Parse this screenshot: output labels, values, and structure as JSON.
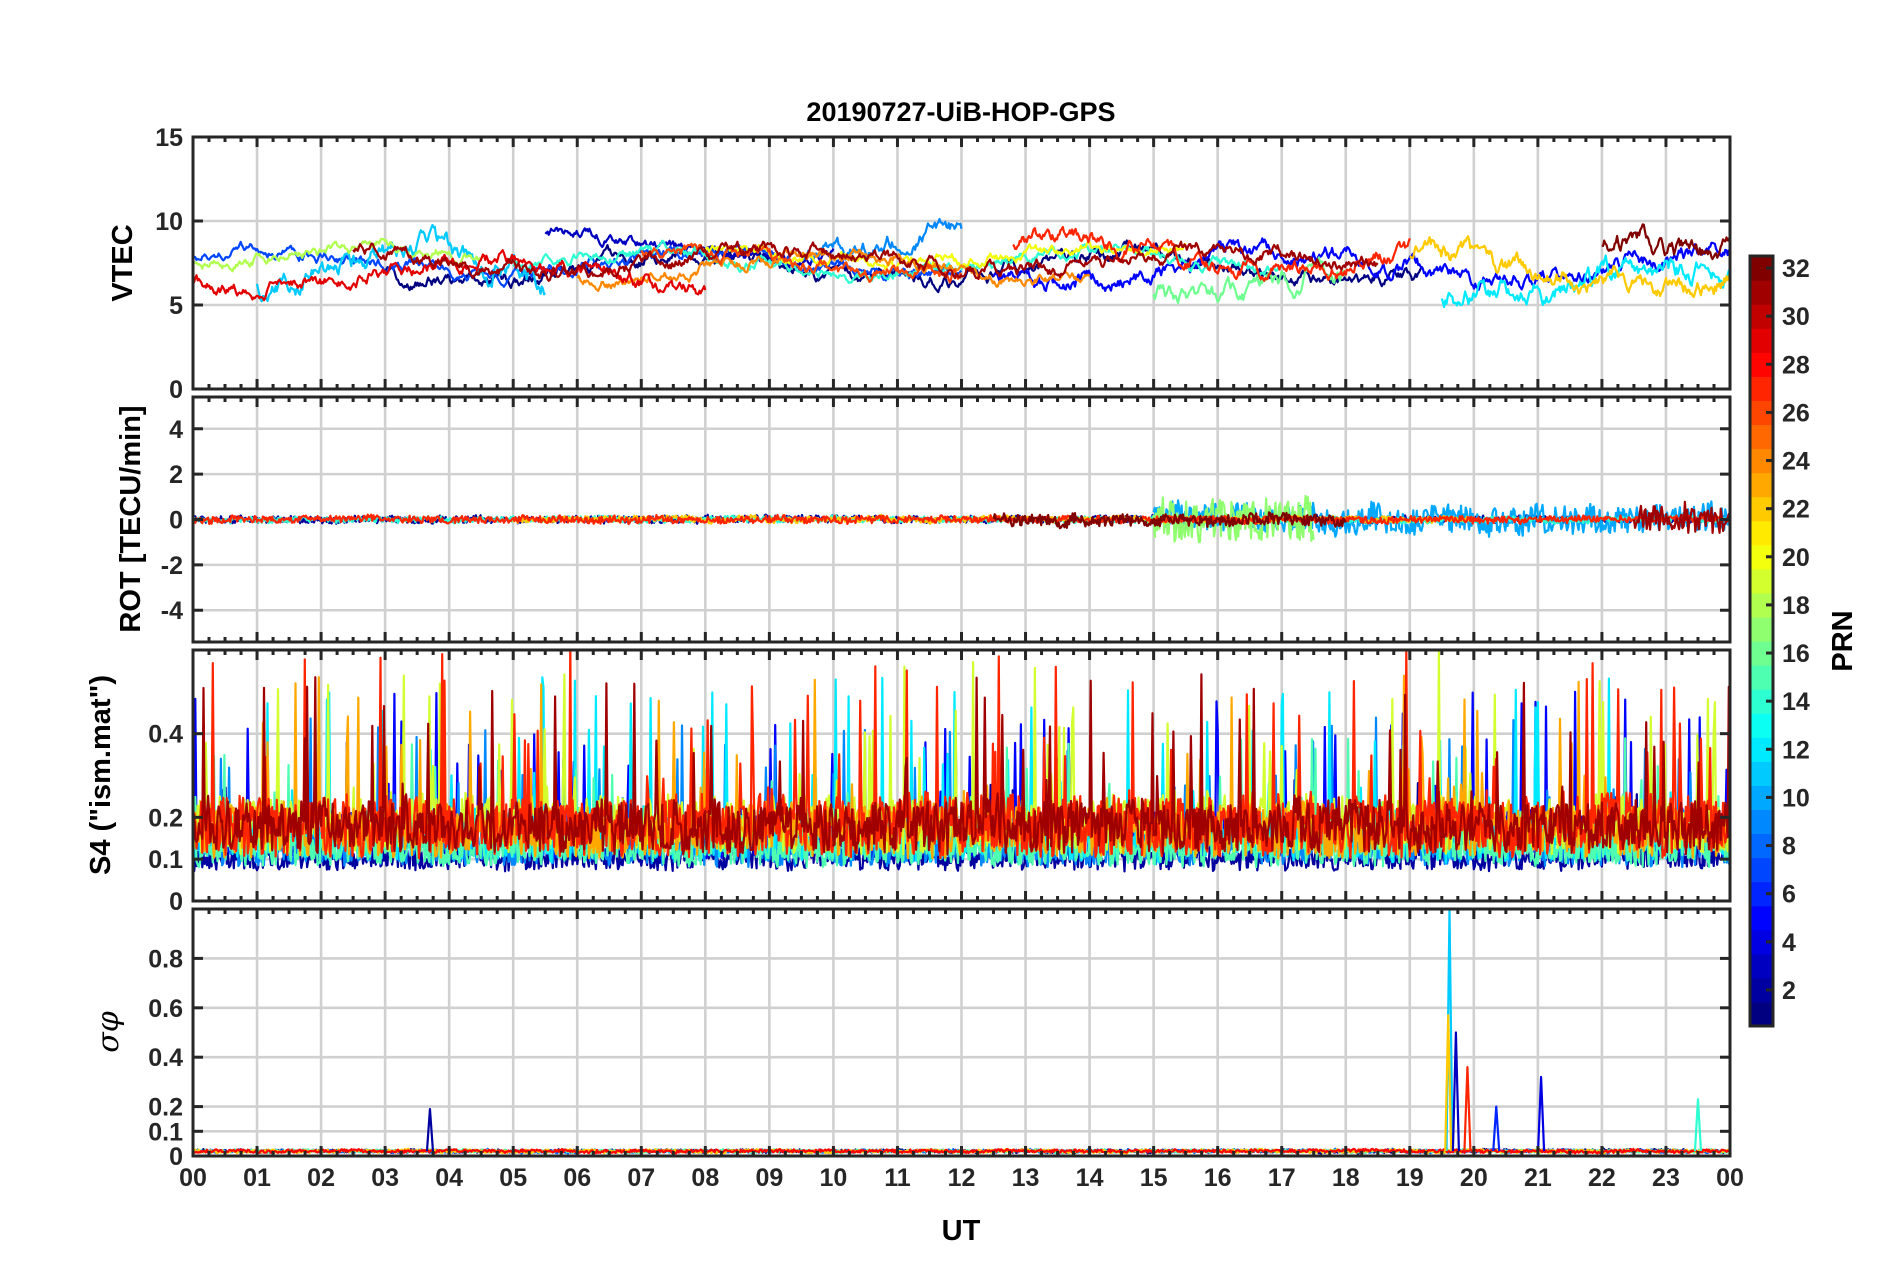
{
  "chart_data": {
    "type": "line",
    "title": "20190727-UiB-HOP-GPS",
    "xlabel": "UT",
    "x_tick_labels": [
      "00",
      "01",
      "02",
      "03",
      "04",
      "05",
      "06",
      "07",
      "08",
      "09",
      "10",
      "11",
      "12",
      "13",
      "14",
      "15",
      "16",
      "17",
      "18",
      "19",
      "20",
      "21",
      "22",
      "23",
      "00"
    ],
    "xlim": [
      0,
      24
    ],
    "colorbar": {
      "label": "PRN",
      "colormap": "jet",
      "range": [
        1,
        32
      ],
      "tick_labels": [
        "2",
        "4",
        "6",
        "8",
        "10",
        "12",
        "14",
        "16",
        "18",
        "20",
        "22",
        "24",
        "26",
        "28",
        "30",
        "32"
      ]
    },
    "panels": [
      {
        "id": "vtec",
        "ylabel": "VTEC",
        "ylim": [
          0,
          15
        ],
        "y_ticks": [
          0,
          5,
          10,
          15
        ],
        "y_tick_labels": [
          "0",
          "5",
          "10",
          "15"
        ],
        "series": [
          {
            "prn": 1,
            "start": 3.0,
            "end": 19.2,
            "base": 7.2,
            "amp": 0.8,
            "noise": 0.25
          },
          {
            "prn": 3,
            "start": 5.5,
            "end": 10.0,
            "base": 8.6,
            "amp": 0.9,
            "noise": 0.2
          },
          {
            "prn": 5,
            "start": 12.5,
            "end": 24.0,
            "base": 7.3,
            "amp": 0.9,
            "noise": 0.3
          },
          {
            "prn": 7,
            "start": 0.0,
            "end": 12.0,
            "base": 7.6,
            "amp": 0.6,
            "noise": 0.2
          },
          {
            "prn": 9,
            "start": 9.5,
            "end": 12.0,
            "base": 8.7,
            "amp": 1.0,
            "noise": 0.3
          },
          {
            "prn": 11,
            "start": 1.0,
            "end": 5.5,
            "base": 6.8,
            "amp": 1.3,
            "noise": 0.4
          },
          {
            "prn": 12,
            "start": 19.5,
            "end": 24.0,
            "base": 6.2,
            "amp": 0.8,
            "noise": 0.4
          },
          {
            "prn": 14,
            "start": 5.0,
            "end": 17.0,
            "base": 7.5,
            "amp": 0.7,
            "noise": 0.2
          },
          {
            "prn": 16,
            "start": 15.0,
            "end": 18.0,
            "base": 6.3,
            "amp": 0.9,
            "noise": 0.35
          },
          {
            "prn": 18,
            "start": 0.0,
            "end": 4.5,
            "base": 7.8,
            "amp": 0.7,
            "noise": 0.2
          },
          {
            "prn": 20,
            "start": 8.0,
            "end": 15.5,
            "base": 7.9,
            "amp": 0.5,
            "noise": 0.2
          },
          {
            "prn": 22,
            "start": 19.0,
            "end": 24.0,
            "base": 7.0,
            "amp": 1.0,
            "noise": 0.35
          },
          {
            "prn": 24,
            "start": 6.0,
            "end": 14.0,
            "base": 7.3,
            "amp": 0.8,
            "noise": 0.2
          },
          {
            "prn": 26,
            "start": 7.0,
            "end": 12.0,
            "base": 7.5,
            "amp": 0.8,
            "noise": 0.25
          },
          {
            "prn": 27,
            "start": 12.8,
            "end": 19.0,
            "base": 8.0,
            "amp": 0.9,
            "noise": 0.3
          },
          {
            "prn": 29,
            "start": 0.0,
            "end": 8.0,
            "base": 6.8,
            "amp": 0.9,
            "noise": 0.25
          },
          {
            "prn": 31,
            "start": 2.5,
            "end": 18.5,
            "base": 7.6,
            "amp": 0.6,
            "noise": 0.25
          },
          {
            "prn": 32,
            "start": 22.0,
            "end": 24.0,
            "base": 8.2,
            "amp": 0.5,
            "noise": 0.4
          }
        ]
      },
      {
        "id": "rot",
        "ylabel": "ROT [TECU/min]",
        "ylim": [
          -5.4,
          5.4
        ],
        "y_ticks": [
          -4,
          -2,
          0,
          2,
          4
        ],
        "y_tick_labels": [
          "-4",
          "-2",
          "0",
          "2",
          "4"
        ],
        "series": [
          {
            "prn": 2,
            "start": 0.0,
            "end": 24.0,
            "base": 0,
            "amp": 0.15,
            "noise": 0.12
          },
          {
            "prn": 10,
            "start": 15.0,
            "end": 24.0,
            "base": 0,
            "amp": 0.6,
            "noise": 0.35
          },
          {
            "prn": 14,
            "start": 0.0,
            "end": 24.0,
            "base": 0,
            "amp": 0.12,
            "noise": 0.1
          },
          {
            "prn": 17,
            "start": 15.0,
            "end": 17.5,
            "base": 0,
            "amp": 0.9,
            "noise": 0.5
          },
          {
            "prn": 22,
            "start": 5.0,
            "end": 20.0,
            "base": 0,
            "amp": 0.12,
            "noise": 0.12
          },
          {
            "prn": 27,
            "start": 0.0,
            "end": 24.0,
            "base": 0,
            "amp": 0.15,
            "noise": 0.1
          },
          {
            "prn": 31,
            "start": 22.5,
            "end": 24.0,
            "base": 0,
            "amp": 0.6,
            "noise": 0.45
          },
          {
            "prn": 32,
            "start": 12.5,
            "end": 18.0,
            "base": 0,
            "amp": 0.25,
            "noise": 0.2
          }
        ]
      },
      {
        "id": "s4",
        "ylabel": "S4 (\"ism.mat\")",
        "ylim": [
          0,
          0.6
        ],
        "y_ticks": [
          0,
          0.1,
          0.2,
          0.4
        ],
        "y_tick_labels": [
          "0",
          "0.1",
          "0.2",
          "0.4"
        ],
        "series": [
          {
            "prn": 2,
            "start": 0.0,
            "end": 24.0,
            "base": 0.07,
            "amp": 0.1,
            "noise": 0.03
          },
          {
            "prn": 5,
            "start": 0.0,
            "end": 24.0,
            "base": 0.1,
            "amp": 0.18,
            "noise": 0.05
          },
          {
            "prn": 9,
            "start": 0.0,
            "end": 24.0,
            "base": 0.08,
            "amp": 0.16,
            "noise": 0.04
          },
          {
            "prn": 12,
            "start": 0.0,
            "end": 24.0,
            "base": 0.09,
            "amp": 0.2,
            "noise": 0.05
          },
          {
            "prn": 15,
            "start": 0.0,
            "end": 24.0,
            "base": 0.08,
            "amp": 0.14,
            "noise": 0.04
          },
          {
            "prn": 19,
            "start": 0.0,
            "end": 24.0,
            "base": 0.11,
            "amp": 0.22,
            "noise": 0.06
          },
          {
            "prn": 23,
            "start": 0.0,
            "end": 24.0,
            "base": 0.1,
            "amp": 0.2,
            "noise": 0.05
          },
          {
            "prn": 27,
            "start": 0.0,
            "end": 24.0,
            "base": 0.1,
            "amp": 0.24,
            "noise": 0.06
          },
          {
            "prn": 31,
            "start": 0.0,
            "end": 24.0,
            "base": 0.11,
            "amp": 0.2,
            "noise": 0.05
          }
        ]
      },
      {
        "id": "sigma_phi",
        "ylabel": "σφ",
        "ylim": [
          0,
          1.0
        ],
        "y_ticks": [
          0,
          0.1,
          0.2,
          0.4,
          0.6,
          0.8
        ],
        "y_tick_labels": [
          "0",
          "0.1",
          "0.2",
          "0.4",
          "0.6",
          "0.8"
        ],
        "series": [
          {
            "prn": 1,
            "start": 0.0,
            "end": 24.0,
            "base": 0.02,
            "amp": 0.012,
            "noise": 0.008
          },
          {
            "prn": 8,
            "start": 0.0,
            "end": 24.0,
            "base": 0.02,
            "amp": 0.012,
            "noise": 0.008
          },
          {
            "prn": 15,
            "start": 0.0,
            "end": 24.0,
            "base": 0.02,
            "amp": 0.012,
            "noise": 0.008
          },
          {
            "prn": 22,
            "start": 0.0,
            "end": 24.0,
            "base": 0.02,
            "amp": 0.012,
            "noise": 0.008
          },
          {
            "prn": 28,
            "start": 0.0,
            "end": 24.0,
            "base": 0.02,
            "amp": 0.012,
            "noise": 0.008
          }
        ],
        "spikes": [
          {
            "prn": 11,
            "x": 19.62,
            "y": 1.0
          },
          {
            "prn": 22,
            "x": 19.6,
            "y": 0.57
          },
          {
            "prn": 3,
            "x": 19.72,
            "y": 0.5
          },
          {
            "prn": 27,
            "x": 19.9,
            "y": 0.36
          },
          {
            "prn": 6,
            "x": 20.35,
            "y": 0.2
          },
          {
            "prn": 4,
            "x": 21.05,
            "y": 0.32
          },
          {
            "prn": 2,
            "x": 3.7,
            "y": 0.19
          },
          {
            "prn": 14,
            "x": 23.5,
            "y": 0.23
          }
        ]
      }
    ]
  }
}
